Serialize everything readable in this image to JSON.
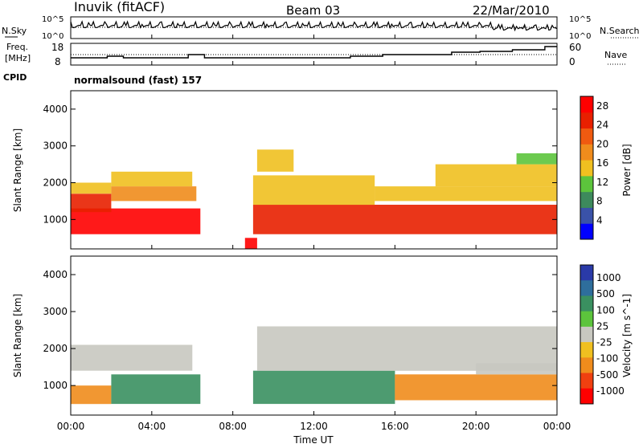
{
  "header": {
    "station": "Inuvik (fitACF)",
    "beam": "Beam 03",
    "date": "22/Mar/2010"
  },
  "noise_panel": {
    "left_label": "N.Sky",
    "left_ticks": [
      "10^5",
      "10^0"
    ],
    "right_label": "N.Search",
    "right_ticks": [
      "10^5",
      "10^0"
    ]
  },
  "freq_panel": {
    "left_label_line1": "Freq.",
    "left_label_line2": "[MHz]",
    "left_ticks": [
      "18",
      "8"
    ],
    "right_label": "Nave",
    "right_ticks": [
      "60",
      "0"
    ]
  },
  "cpid": {
    "label": "CPID",
    "text": "normalsound (fast) 157"
  },
  "x_axis": {
    "ticks": [
      "00:00",
      "04:00",
      "08:00",
      "12:00",
      "16:00",
      "20:00",
      "00:00"
    ],
    "label": "Time UT"
  },
  "colors": {
    "power_scale": [
      "#0000ff",
      "#3a52a8",
      "#3d8a5c",
      "#5cc43c",
      "#f0c020",
      "#f08c1c",
      "#f05a10",
      "#e82000",
      "#ff0000"
    ],
    "velocity_scale": [
      "#2a3aa8",
      "#2e6e9c",
      "#3a9060",
      "#5cc43c",
      "#c8c8c0",
      "#f0c020",
      "#f08c1c",
      "#f04010",
      "#ff0000"
    ]
  },
  "chart_data": [
    {
      "type": "heatmap",
      "title": "Power",
      "ylabel": "Slant Range [km]",
      "xlabel": "Time UT",
      "y_ticks": [
        1000,
        2000,
        3000,
        4000
      ],
      "ylim": [
        200,
        4500
      ],
      "colorbar_label": "Power [dB]",
      "colorbar_ticks": [
        4,
        8,
        12,
        16,
        20,
        24,
        28
      ],
      "colorbar_range": [
        0,
        30
      ],
      "bands": [
        {
          "t_start": 0.0,
          "t_end": 6.4,
          "range_min": 600,
          "range_max": 1300,
          "value": 28
        },
        {
          "t_start": 0.0,
          "t_end": 2.0,
          "range_min": 1200,
          "range_max": 1700,
          "value": 26
        },
        {
          "t_start": 0.0,
          "t_end": 2.0,
          "range_min": 1700,
          "range_max": 2000,
          "value": 16
        },
        {
          "t_start": 2.0,
          "t_end": 6.2,
          "range_min": 1500,
          "range_max": 1900,
          "value": 18
        },
        {
          "t_start": 2.0,
          "t_end": 6.0,
          "range_min": 1900,
          "range_max": 2300,
          "value": 16
        },
        {
          "t_start": 8.6,
          "t_end": 9.2,
          "range_min": 200,
          "range_max": 500,
          "value": 28
        },
        {
          "t_start": 9.0,
          "t_end": 24.0,
          "range_min": 600,
          "range_max": 1400,
          "value": 26
        },
        {
          "t_start": 9.0,
          "t_end": 15.0,
          "range_min": 1400,
          "range_max": 2200,
          "value": 14
        },
        {
          "t_start": 9.2,
          "t_end": 11.0,
          "range_min": 2300,
          "range_max": 2900,
          "value": 14
        },
        {
          "t_start": 15.0,
          "t_end": 24.0,
          "range_min": 1500,
          "range_max": 1900,
          "value": 16
        },
        {
          "t_start": 18.0,
          "t_end": 24.0,
          "range_min": 1900,
          "range_max": 2500,
          "value": 14
        },
        {
          "t_start": 22.0,
          "t_end": 24.0,
          "range_min": 2500,
          "range_max": 2800,
          "value": 12
        }
      ]
    },
    {
      "type": "heatmap",
      "title": "Velocity",
      "ylabel": "Slant Range [km]",
      "xlabel": "Time UT",
      "y_ticks": [
        1000,
        2000,
        3000,
        4000
      ],
      "ylim": [
        200,
        4500
      ],
      "colorbar_label": "Velocity [m s^-1]",
      "colorbar_ticks": [
        1000,
        500,
        100,
        25,
        -25,
        -100,
        -500,
        -1000
      ],
      "bands": [
        {
          "t_start": 0.0,
          "t_end": 2.0,
          "range_min": 500,
          "range_max": 1000,
          "value": -200
        },
        {
          "t_start": 2.0,
          "t_end": 6.4,
          "range_min": 500,
          "range_max": 1300,
          "value": 200
        },
        {
          "t_start": 0.0,
          "t_end": 6.0,
          "range_min": 1400,
          "range_max": 2100,
          "value": 0
        },
        {
          "t_start": 9.0,
          "t_end": 16.0,
          "range_min": 500,
          "range_max": 1400,
          "value": 150
        },
        {
          "t_start": 16.0,
          "t_end": 24.0,
          "range_min": 600,
          "range_max": 1300,
          "value": -150
        },
        {
          "t_start": 9.2,
          "t_end": 24.0,
          "range_min": 1400,
          "range_max": 2600,
          "value": 0
        },
        {
          "t_start": 20.0,
          "t_end": 24.0,
          "range_min": 1300,
          "range_max": 1600,
          "value": 0
        }
      ]
    }
  ]
}
